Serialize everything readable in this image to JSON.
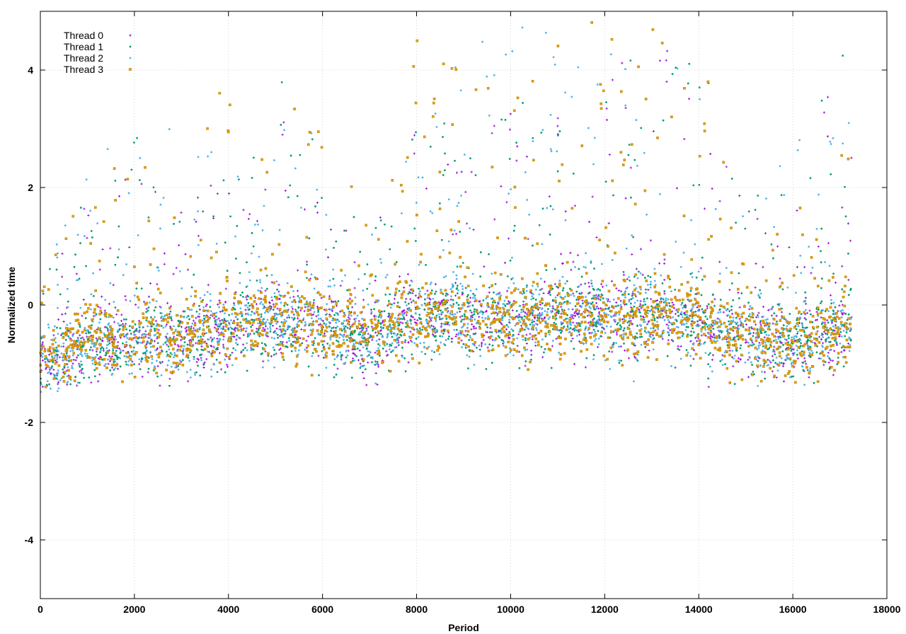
{
  "chart_data": {
    "type": "scatter",
    "title": "",
    "xlabel": "Period",
    "ylabel": "Normalized time",
    "xlim": [
      0,
      18000
    ],
    "ylim": [
      -5,
      5
    ],
    "x_ticks": [
      0,
      2000,
      4000,
      6000,
      8000,
      10000,
      12000,
      14000,
      16000,
      18000
    ],
    "y_ticks": [
      -4,
      -2,
      0,
      2,
      4
    ],
    "x_tick_labels": [
      "0",
      "2000",
      "4000",
      "6000",
      "8000",
      "10000",
      "12000",
      "14000",
      "16000",
      "18000"
    ],
    "y_tick_labels": [
      "-4",
      "-2",
      "0",
      "2",
      "4"
    ],
    "grid": true,
    "legend_position": "top-left",
    "point_count_approx_per_series": 17250,
    "x_range_observed": [
      0,
      17250
    ],
    "series": [
      {
        "name": "Thread 0",
        "color": "#9400d3",
        "marker": "plus",
        "summary": {
          "baseline_y": -0.6,
          "lower_bound_y": -1.4,
          "max_y_visible": 5.0
        },
        "profile": [
          {
            "x": 0,
            "center": -1.0,
            "peak": 0.2
          },
          {
            "x": 1000,
            "center": -0.7,
            "peak": 2.0
          },
          {
            "x": 2000,
            "center": -0.6,
            "peak": 2.2
          },
          {
            "x": 3000,
            "center": -0.6,
            "peak": 1.8
          },
          {
            "x": 4000,
            "center": -0.4,
            "peak": 2.5
          },
          {
            "x": 5000,
            "center": -0.3,
            "peak": 3.5
          },
          {
            "x": 6000,
            "center": -0.4,
            "peak": 2.5
          },
          {
            "x": 7000,
            "center": -0.6,
            "peak": 1.2
          },
          {
            "x": 8000,
            "center": -0.2,
            "peak": 3.0
          },
          {
            "x": 9000,
            "center": -0.2,
            "peak": 3.0
          },
          {
            "x": 10000,
            "center": -0.3,
            "peak": 3.5
          },
          {
            "x": 11000,
            "center": -0.2,
            "peak": 3.5
          },
          {
            "x": 12000,
            "center": -0.2,
            "peak": 4.0
          },
          {
            "x": 13000,
            "center": -0.2,
            "peak": 4.5
          },
          {
            "x": 14000,
            "center": -0.3,
            "peak": 4.5
          },
          {
            "x": 15000,
            "center": -0.6,
            "peak": 1.5
          },
          {
            "x": 16000,
            "center": -0.7,
            "peak": 1.5
          },
          {
            "x": 17000,
            "center": -0.4,
            "peak": 4.5
          }
        ]
      },
      {
        "name": "Thread 1",
        "color": "#009e73",
        "marker": "dot",
        "summary": {
          "baseline_y": -0.6,
          "lower_bound_y": -1.4,
          "max_y_visible": 5.0
        },
        "profile": [
          {
            "x": 0,
            "center": -1.0,
            "peak": 0.3
          },
          {
            "x": 1000,
            "center": -0.7,
            "peak": 2.0
          },
          {
            "x": 2000,
            "center": -0.6,
            "peak": 3.3
          },
          {
            "x": 3000,
            "center": -0.6,
            "peak": 2.0
          },
          {
            "x": 4000,
            "center": -0.4,
            "peak": 2.5
          },
          {
            "x": 5000,
            "center": -0.3,
            "peak": 4.5
          },
          {
            "x": 6000,
            "center": -0.4,
            "peak": 2.5
          },
          {
            "x": 7000,
            "center": -0.6,
            "peak": 1.2
          },
          {
            "x": 8000,
            "center": -0.2,
            "peak": 3.0
          },
          {
            "x": 9000,
            "center": -0.2,
            "peak": 3.5
          },
          {
            "x": 10000,
            "center": -0.3,
            "peak": 4.0
          },
          {
            "x": 11000,
            "center": -0.2,
            "peak": 3.5
          },
          {
            "x": 12000,
            "center": -0.2,
            "peak": 4.0
          },
          {
            "x": 13000,
            "center": -0.2,
            "peak": 4.5
          },
          {
            "x": 14000,
            "center": -0.3,
            "peak": 4.5
          },
          {
            "x": 15000,
            "center": -0.6,
            "peak": 1.6
          },
          {
            "x": 16000,
            "center": -0.7,
            "peak": 2.8
          },
          {
            "x": 17000,
            "center": -0.4,
            "peak": 4.8
          }
        ]
      },
      {
        "name": "Thread 2",
        "color": "#56b4e9",
        "marker": "dot",
        "summary": {
          "baseline_y": -0.6,
          "lower_bound_y": -1.5,
          "max_y_visible": 5.0
        },
        "profile": [
          {
            "x": 0,
            "center": -1.0,
            "peak": 0.9
          },
          {
            "x": 1000,
            "center": -0.7,
            "peak": 2.4
          },
          {
            "x": 2000,
            "center": -0.6,
            "peak": 3.3
          },
          {
            "x": 3000,
            "center": -0.6,
            "peak": 3.5
          },
          {
            "x": 4000,
            "center": -0.4,
            "peak": 2.5
          },
          {
            "x": 5000,
            "center": -0.3,
            "peak": 4.7
          },
          {
            "x": 6000,
            "center": -0.4,
            "peak": 2.5
          },
          {
            "x": 7000,
            "center": -0.6,
            "peak": 1.2
          },
          {
            "x": 8000,
            "center": -0.2,
            "peak": 3.0
          },
          {
            "x": 9000,
            "center": -0.2,
            "peak": 4.8
          },
          {
            "x": 10000,
            "center": -0.3,
            "peak": 4.8
          },
          {
            "x": 11000,
            "center": -0.2,
            "peak": 4.7
          },
          {
            "x": 12000,
            "center": -0.2,
            "peak": 4.5
          },
          {
            "x": 13000,
            "center": -0.2,
            "peak": 4.5
          },
          {
            "x": 14000,
            "center": -0.3,
            "peak": 5.0
          },
          {
            "x": 15000,
            "center": -0.6,
            "peak": 1.8
          },
          {
            "x": 16000,
            "center": -0.7,
            "peak": 2.8
          },
          {
            "x": 17000,
            "center": -0.4,
            "peak": 4.8
          }
        ]
      },
      {
        "name": "Thread 3",
        "color": "#e69f00",
        "marker": "square",
        "summary": {
          "baseline_y": -0.6,
          "lower_bound_y": -1.4,
          "max_y_visible": 5.0
        },
        "profile": [
          {
            "x": 0,
            "center": -0.9,
            "peak": 0.2
          },
          {
            "x": 1000,
            "center": -0.7,
            "peak": 2.4
          },
          {
            "x": 2000,
            "center": -0.6,
            "peak": 2.7
          },
          {
            "x": 3000,
            "center": -0.6,
            "peak": 2.0
          },
          {
            "x": 4000,
            "center": -0.3,
            "peak": 4.4
          },
          {
            "x": 5000,
            "center": -0.3,
            "peak": 4.2
          },
          {
            "x": 6000,
            "center": -0.4,
            "peak": 3.0
          },
          {
            "x": 7000,
            "center": -0.5,
            "peak": 1.8
          },
          {
            "x": 8000,
            "center": -0.2,
            "peak": 4.7
          },
          {
            "x": 9000,
            "center": -0.2,
            "peak": 4.2
          },
          {
            "x": 10000,
            "center": -0.3,
            "peak": 3.5
          },
          {
            "x": 11000,
            "center": -0.2,
            "peak": 4.5
          },
          {
            "x": 12000,
            "center": -0.3,
            "peak": 5.0
          },
          {
            "x": 13000,
            "center": -0.2,
            "peak": 5.0
          },
          {
            "x": 14000,
            "center": -0.3,
            "peak": 5.0
          },
          {
            "x": 15000,
            "center": -0.6,
            "peak": 1.8
          },
          {
            "x": 16000,
            "center": -0.7,
            "peak": 1.5
          },
          {
            "x": 17000,
            "center": -0.5,
            "peak": 3.5
          }
        ]
      }
    ]
  }
}
